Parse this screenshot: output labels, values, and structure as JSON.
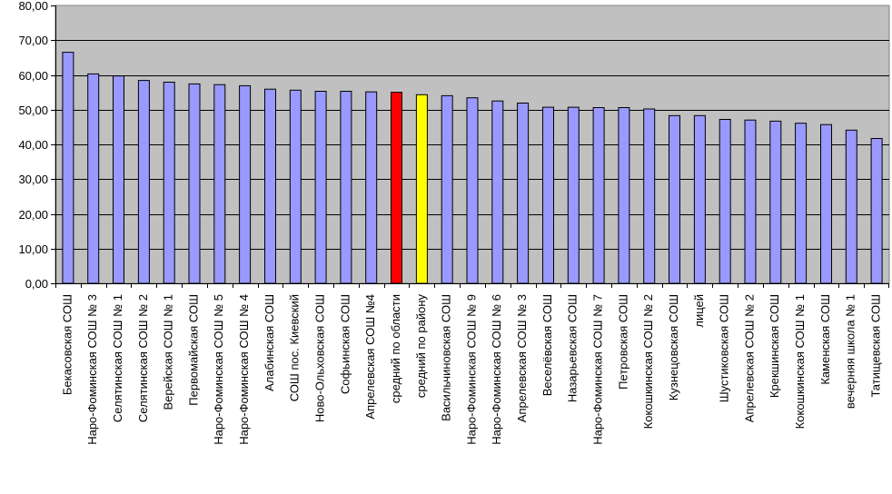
{
  "chart_data": {
    "type": "bar",
    "title": "",
    "xlabel": "",
    "ylabel": "",
    "ylim": [
      0,
      80
    ],
    "yticks": [
      "0,00",
      "10,00",
      "20,00",
      "30,00",
      "40,00",
      "50,00",
      "60,00",
      "70,00",
      "80,00"
    ],
    "grid": true,
    "legend": "none",
    "colors": {
      "plot_background": "#c0c0c0",
      "bar_default": "#9999ff",
      "bar_region": "#ff0000",
      "bar_district": "#ffff00",
      "bar_edge": "#000000",
      "gridline": "#000000"
    },
    "categories": [
      "Бекасовская СОШ",
      "Наро-Фоминская СОШ № 3",
      "Селятинская СОШ № 1",
      "Селятинская СОШ № 2",
      "Верейская СОШ № 1",
      "Первомайская СОШ",
      "Наро-Фоминская СОШ № 5",
      "Наро-Фоминская СОШ № 4",
      "Алабинская СОШ",
      "СОШ  пос. Киевский",
      "Ново-Ольховская СОШ",
      "Софьинская СОШ",
      "Апрелевская СОШ №4",
      "средний по области",
      "средний по району",
      "Васильчиновская СОШ",
      "Наро-Фоминская СОШ № 9",
      "Наро-Фоминская СОШ № 6",
      "Апрелевская СОШ № 3",
      "Веселёвская СОШ",
      "Назарьевская СОШ",
      "Наро-Фоминская СОШ № 7",
      "Петровская СОШ",
      "Кокошкинская СОШ № 2",
      "Кузнецовская СОШ",
      "лицей",
      "Шустиковская СОШ",
      "Апрелевская СОШ № 2",
      "Крекшинская СОШ",
      "Кокошкинская СОШ № 1",
      "Каменская СОШ",
      "вечерняя  школа № 1",
      "Татищевская СОШ"
    ],
    "values": [
      66.5,
      60.3,
      59.7,
      58.4,
      57.9,
      57.4,
      57.2,
      56.9,
      55.9,
      55.6,
      55.3,
      55.3,
      55.1,
      55.0,
      54.3,
      54.0,
      53.4,
      52.5,
      51.9,
      50.7,
      50.7,
      50.6,
      50.6,
      50.2,
      48.3,
      48.3,
      47.2,
      47.0,
      46.7,
      46.1,
      45.7,
      44.1,
      41.7
    ],
    "highlight": {
      "средний по области": "bar_region",
      "средний по району": "bar_district"
    }
  }
}
